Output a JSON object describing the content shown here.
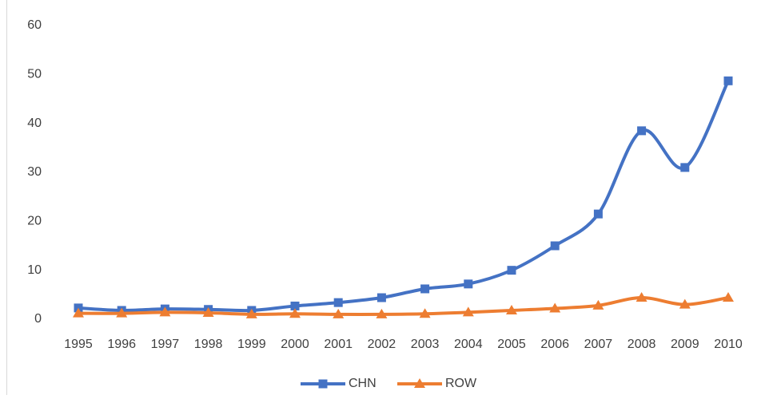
{
  "chart_data": {
    "type": "line",
    "categories": [
      "1995",
      "1996",
      "1997",
      "1998",
      "1999",
      "2000",
      "2001",
      "2002",
      "2003",
      "2004",
      "2005",
      "2006",
      "2007",
      "2008",
      "2009",
      "2010"
    ],
    "series": [
      {
        "name": "CHN",
        "color": "#4472c4",
        "marker": "square",
        "values": [
          2.3,
          1.8,
          2.1,
          2.0,
          1.8,
          2.7,
          3.4,
          4.4,
          6.2,
          7.2,
          10.0,
          15.0,
          21.5,
          38.5,
          31.0,
          48.7
        ]
      },
      {
        "name": "ROW",
        "color": "#ed7d31",
        "marker": "triangle",
        "values": [
          1.2,
          1.2,
          1.4,
          1.3,
          1.0,
          1.1,
          1.0,
          1.0,
          1.1,
          1.4,
          1.8,
          2.2,
          2.8,
          4.4,
          3.0,
          4.4
        ]
      }
    ],
    "ylim": [
      0,
      60
    ],
    "yticks": [
      0,
      10,
      20,
      30,
      40,
      50,
      60
    ],
    "grid": false,
    "smooth": true,
    "legend": "bottom"
  }
}
